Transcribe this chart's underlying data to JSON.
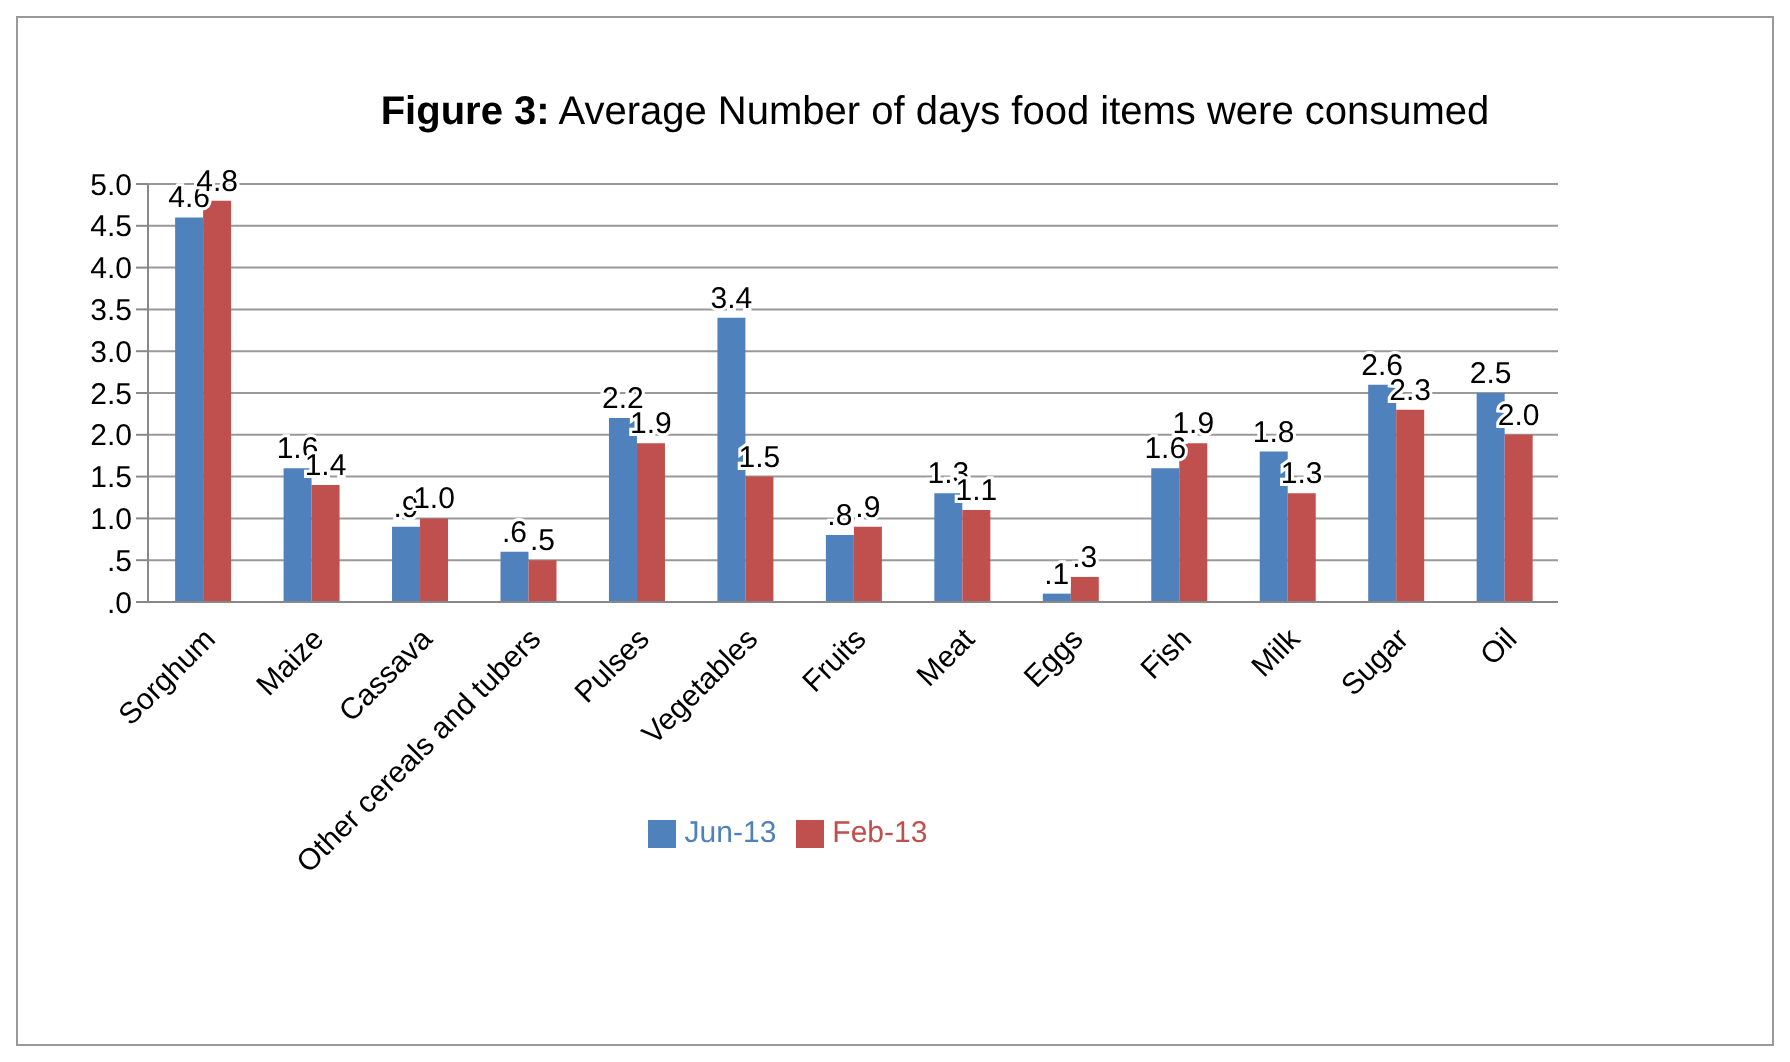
{
  "chart_data": {
    "type": "bar",
    "title": "Figure 3: Average Number of days food items were consumed",
    "categories": [
      "Sorghum",
      "Maize",
      "Cassava",
      "Other cereals and tubers",
      "Pulses",
      "Vegetables",
      "Fruits",
      "Meat",
      "Eggs",
      "Fish",
      "Milk",
      "Sugar",
      "Oil"
    ],
    "series": [
      {
        "name": "Jun-13",
        "color": "#4f81bd",
        "values": [
          4.6,
          1.6,
          0.9,
          0.6,
          2.2,
          3.4,
          0.8,
          1.3,
          0.1,
          1.6,
          1.8,
          2.6,
          2.5
        ],
        "value_labels": [
          "4.6",
          "1.6",
          ".9",
          ".6",
          "2.2",
          "3.4",
          ".8",
          "1.3",
          ".1",
          "1.6",
          "1.8",
          "2.6",
          "2.5"
        ]
      },
      {
        "name": "Feb-13",
        "color": "#c0504d",
        "values": [
          4.8,
          1.4,
          1.0,
          0.5,
          1.9,
          1.5,
          0.9,
          1.1,
          0.3,
          1.9,
          1.3,
          2.3,
          2.0
        ],
        "value_labels": [
          "4.8",
          "1.4",
          "1.0",
          ".5",
          "1.9",
          "1.5",
          ".9",
          "1.1",
          ".3",
          "1.9",
          "1.3",
          "2.3",
          "2.0"
        ]
      }
    ],
    "ylim": [
      0,
      5
    ],
    "yticks": [
      {
        "value": 0,
        "label": ".0"
      },
      {
        "value": 0.5,
        "label": ".5"
      },
      "1.0",
      "1.5",
      "2.0",
      "2.5",
      "3.0",
      "3.5",
      "4.0",
      "4.5",
      "5.0"
    ],
    "grid": "y",
    "legend": "bottom"
  }
}
